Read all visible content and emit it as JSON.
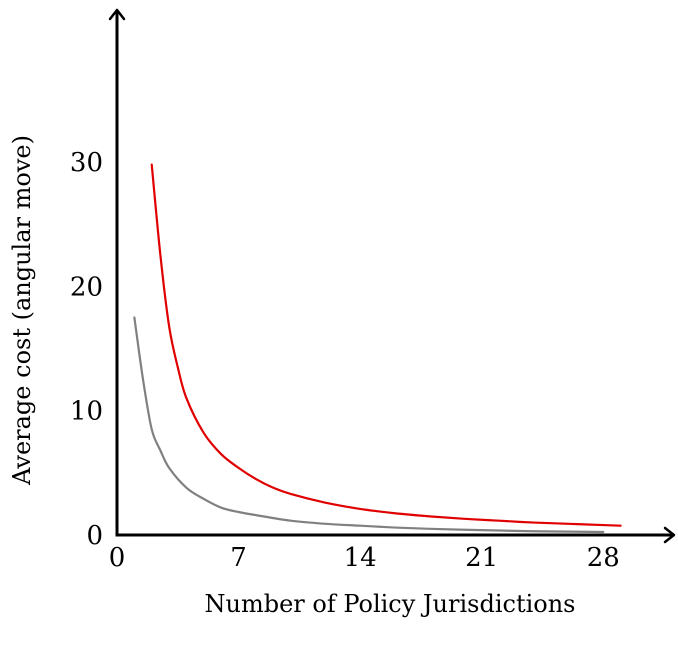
{
  "chart_data": {
    "type": "line",
    "title": "",
    "xlabel": "Number of Policy Jurisdictions",
    "ylabel": "Average cost (angular move)",
    "xlim": [
      0,
      30
    ],
    "ylim": [
      0,
      35
    ],
    "x_ticks": [
      0,
      7,
      14,
      21,
      28
    ],
    "y_ticks": [
      0,
      10,
      20,
      30
    ],
    "x_tick_labels": [
      "0",
      "7",
      "14",
      "21",
      "28"
    ],
    "y_tick_labels": [
      "0",
      "10",
      "20",
      "30"
    ],
    "grid": false,
    "legend": "none",
    "series": [
      {
        "color": "#e00000",
        "x": [
          2,
          2.5,
          3,
          3.5,
          4,
          5,
          6,
          7,
          8,
          9,
          10,
          12,
          14,
          16,
          18,
          20,
          22,
          24,
          26,
          28,
          29
        ],
        "y": [
          29.8,
          22.5,
          16.8,
          13.5,
          11.0,
          8.2,
          6.5,
          5.4,
          4.5,
          3.8,
          3.3,
          2.6,
          2.1,
          1.75,
          1.5,
          1.3,
          1.15,
          1.0,
          0.9,
          0.8,
          0.75
        ]
      },
      {
        "color": "#808080",
        "x": [
          1,
          1.5,
          2,
          2.5,
          3,
          4,
          5,
          6,
          7,
          8,
          10,
          12,
          14,
          16,
          18,
          20,
          22,
          24,
          26,
          28
        ],
        "y": [
          17.5,
          12.5,
          8.5,
          6.8,
          5.4,
          3.8,
          2.9,
          2.2,
          1.85,
          1.6,
          1.15,
          0.9,
          0.75,
          0.6,
          0.5,
          0.42,
          0.36,
          0.3,
          0.27,
          0.24
        ]
      }
    ]
  }
}
